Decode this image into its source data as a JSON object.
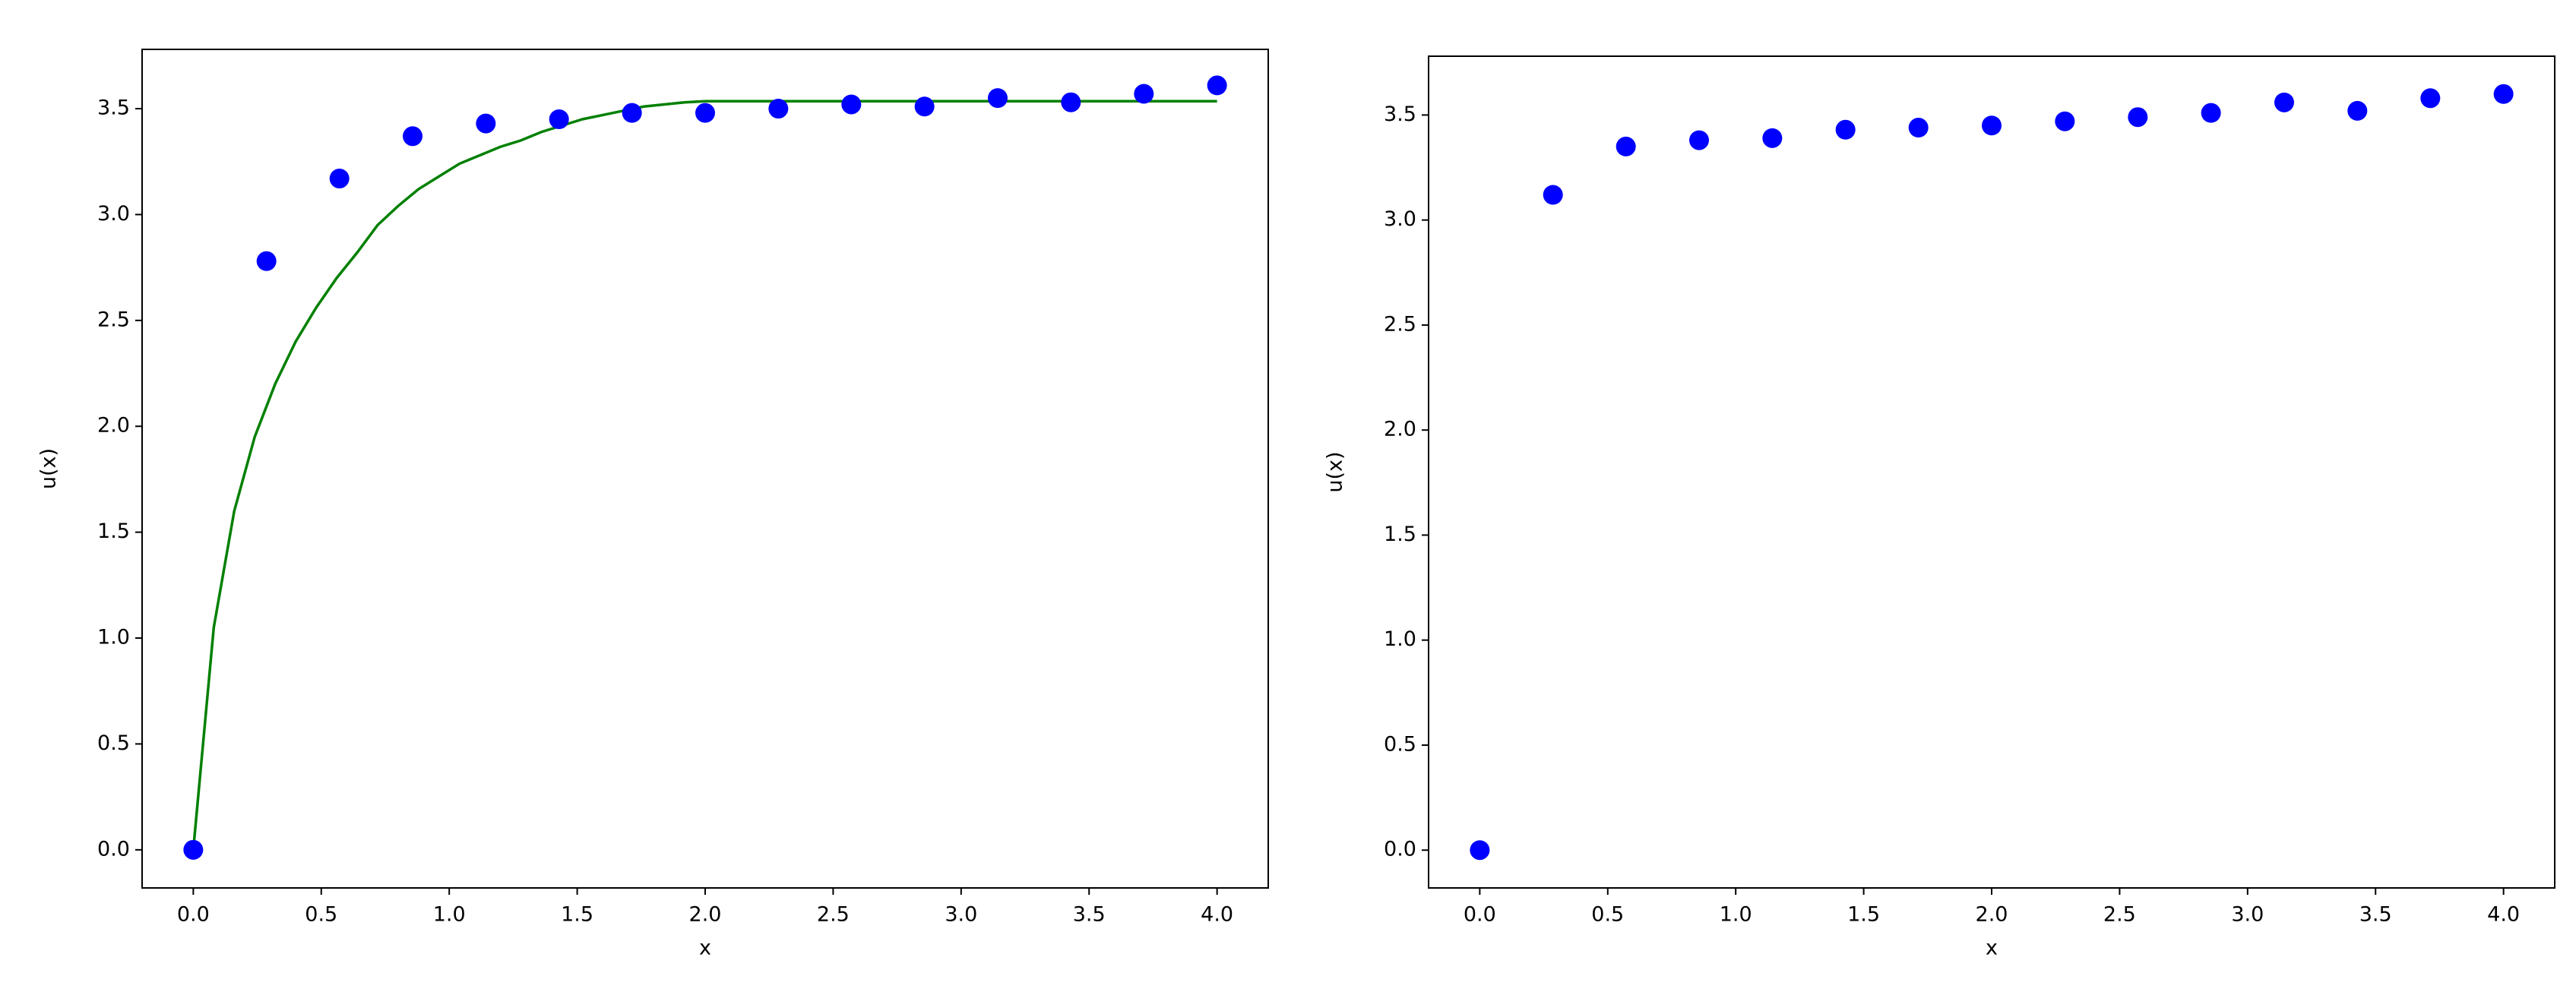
{
  "chart_data": [
    {
      "type": "scatter",
      "xlabel": "x",
      "ylabel": "u(x)",
      "xlim": [
        -0.2,
        4.2
      ],
      "ylim": [
        -0.18,
        3.78
      ],
      "xticks": [
        {
          "value": 0,
          "label": "0.0"
        },
        {
          "value": 0.5,
          "label": "0.5"
        },
        {
          "value": 1,
          "label": "1.0"
        },
        {
          "value": 1.5,
          "label": "1.5"
        },
        {
          "value": 2,
          "label": "2.0"
        },
        {
          "value": 2.5,
          "label": "2.5"
        },
        {
          "value": 3,
          "label": "3.0"
        },
        {
          "value": 3.5,
          "label": "3.5"
        },
        {
          "value": 4,
          "label": "4.0"
        }
      ],
      "yticks": [
        {
          "value": 0,
          "label": "0.0"
        },
        {
          "value": 0.5,
          "label": "0.5"
        },
        {
          "value": 1,
          "label": "1.0"
        },
        {
          "value": 1.5,
          "label": "1.5"
        },
        {
          "value": 2,
          "label": "2.0"
        },
        {
          "value": 2.5,
          "label": "2.5"
        },
        {
          "value": 3,
          "label": "3.0"
        },
        {
          "value": 3.5,
          "label": "3.5"
        }
      ],
      "series": [
        {
          "type": "line",
          "color": "#008000",
          "x": [
            0,
            0.08,
            0.16,
            0.24,
            0.32,
            0.4,
            0.48,
            0.56,
            0.64,
            0.72,
            0.8,
            0.88,
            0.96,
            1.04,
            1.12,
            1.2,
            1.28,
            1.36,
            1.44,
            1.52,
            1.6,
            1.68,
            1.76,
            1.84,
            1.92,
            2.0,
            4.0
          ],
          "values": [
            0,
            1.05,
            1.6,
            1.95,
            2.2,
            2.4,
            2.56,
            2.7,
            2.82,
            2.95,
            3.04,
            3.12,
            3.18,
            3.24,
            3.28,
            3.32,
            3.35,
            3.39,
            3.42,
            3.45,
            3.47,
            3.49,
            3.51,
            3.52,
            3.53,
            3.535,
            3.535
          ]
        },
        {
          "type": "scatter",
          "color": "#0000ff",
          "x": [
            0,
            0.286,
            0.571,
            0.857,
            1.143,
            1.429,
            1.714,
            2.0,
            2.286,
            2.571,
            2.857,
            3.143,
            3.429,
            3.714,
            4.0
          ],
          "values": [
            0,
            2.78,
            3.17,
            3.37,
            3.43,
            3.45,
            3.48,
            3.48,
            3.5,
            3.52,
            3.51,
            3.55,
            3.53,
            3.57,
            3.61
          ]
        }
      ]
    },
    {
      "type": "scatter",
      "xlabel": "x",
      "ylabel": "u(x)",
      "xlim": [
        -0.2,
        4.2
      ],
      "ylim": [
        -0.18,
        3.78
      ],
      "xticks": [
        {
          "value": 0,
          "label": "0.0"
        },
        {
          "value": 0.5,
          "label": "0.5"
        },
        {
          "value": 1,
          "label": "1.0"
        },
        {
          "value": 1.5,
          "label": "1.5"
        },
        {
          "value": 2,
          "label": "2.0"
        },
        {
          "value": 2.5,
          "label": "2.5"
        },
        {
          "value": 3,
          "label": "3.0"
        },
        {
          "value": 3.5,
          "label": "3.5"
        },
        {
          "value": 4,
          "label": "4.0"
        }
      ],
      "yticks": [
        {
          "value": 0,
          "label": "0.0"
        },
        {
          "value": 0.5,
          "label": "0.5"
        },
        {
          "value": 1,
          "label": "1.0"
        },
        {
          "value": 1.5,
          "label": "1.5"
        },
        {
          "value": 2,
          "label": "2.0"
        },
        {
          "value": 2.5,
          "label": "2.5"
        },
        {
          "value": 3,
          "label": "3.0"
        },
        {
          "value": 3.5,
          "label": "3.5"
        }
      ],
      "series": [
        {
          "type": "scatter",
          "color": "#0000ff",
          "x": [
            0,
            0.286,
            0.571,
            0.857,
            1.143,
            1.429,
            1.714,
            2.0,
            2.286,
            2.571,
            2.857,
            3.143,
            3.429,
            3.714,
            4.0
          ],
          "values": [
            0,
            3.12,
            3.35,
            3.38,
            3.39,
            3.43,
            3.44,
            3.45,
            3.47,
            3.49,
            3.51,
            3.56,
            3.52,
            3.58,
            3.6
          ]
        }
      ]
    }
  ]
}
